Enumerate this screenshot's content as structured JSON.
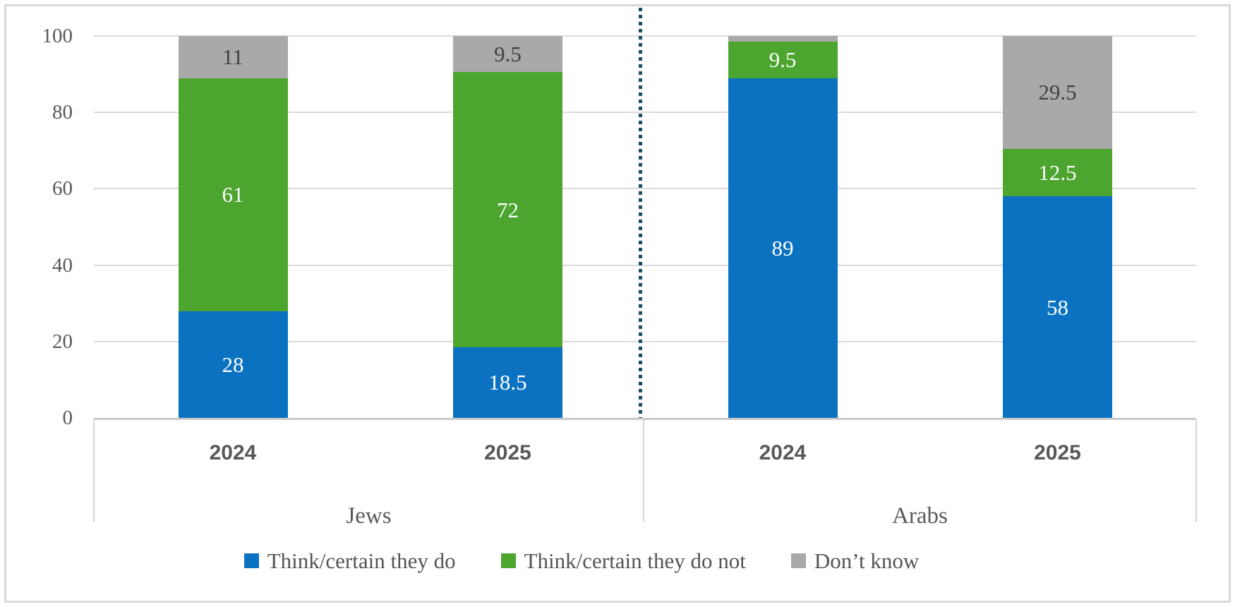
{
  "chart_data": {
    "type": "bar",
    "stacked": true,
    "ylim": [
      0,
      100
    ],
    "y_ticks": [
      0,
      20,
      40,
      60,
      80,
      100
    ],
    "grid": true,
    "legend_position": "bottom",
    "groups": [
      {
        "label": "Jews",
        "categories": [
          "2024",
          "2025"
        ]
      },
      {
        "label": "Arabs",
        "categories": [
          "2024",
          "2025"
        ]
      }
    ],
    "series": [
      {
        "name": "Think/certain they do",
        "color": "#0B72C2",
        "label_color": "#FFFFFF",
        "values": [
          28,
          18.5,
          89,
          58
        ],
        "labels": [
          "28",
          "18.5",
          "89",
          "58"
        ]
      },
      {
        "name": "Think/certain they do not",
        "color": "#4BA52F",
        "label_color": "#FFFFFF",
        "values": [
          61,
          72,
          9.5,
          12.5
        ],
        "labels": [
          "61",
          "72",
          "9.5",
          "12.5"
        ]
      },
      {
        "name": "Don’t know",
        "color": "#A9A9A9",
        "label_color": "#404040",
        "values": [
          11,
          9.5,
          1.5,
          29.5
        ],
        "labels": [
          "11",
          "9.5",
          null,
          "29.5"
        ]
      }
    ],
    "separator": {
      "between_groups": true,
      "style": "dotted",
      "color": "#1D4F63"
    },
    "colors": {
      "grid": "#DBDBDB",
      "axis_text": "#595959",
      "axis_line": "#C9C9C9",
      "card_border": "#D9D9D9"
    }
  }
}
